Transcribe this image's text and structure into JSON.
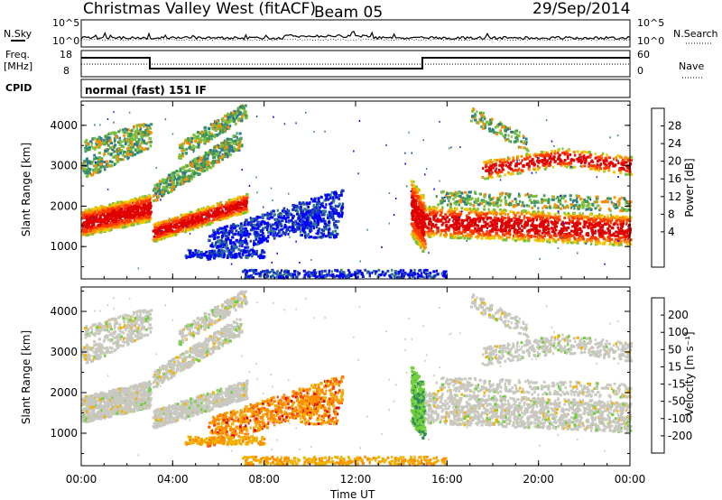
{
  "header": {
    "title": "Christmas Valley West (fitACF)",
    "beam": "Beam 05",
    "date": "29/Sep/2014"
  },
  "params": {
    "nsky_label": "N.Sky",
    "nsearch_label": "N.Search",
    "freq_label_1": "Freq.",
    "freq_label_2": "[MHz]",
    "nave_label": "Nave",
    "cpid_label": "CPID",
    "cpid_value": "normal (fast) 151 IF",
    "noise_ticks": [
      "10^5",
      "10^0"
    ],
    "nsearch_ticks": [
      "10^5",
      "10^0"
    ],
    "freq_ticks": [
      "18",
      "8"
    ],
    "nave_ticks": [
      "60",
      "0"
    ]
  },
  "colors": {
    "power": [
      "#0000ff",
      "#1a3cb4",
      "#2f7a8c",
      "#3f9a5a",
      "#7ac03a",
      "#f0c800",
      "#ff8c00",
      "#ff3a00",
      "#e00000"
    ],
    "velocity": [
      "#0000c8",
      "#2f5acc",
      "#2f8a5a",
      "#6fd03a",
      "#c8c8c0",
      "#f0b400",
      "#ff8c00",
      "#ff4000",
      "#e00000"
    ]
  },
  "chart_data": [
    {
      "type": "heatmap",
      "panel": "power",
      "ylabel": "Slant Range [km]",
      "ylim": [
        200,
        4600
      ],
      "yticks": [
        "1000",
        "2000",
        "3000",
        "4000"
      ],
      "colorbar_label": "Power [dB]",
      "colorbar_ticks": [
        "28",
        "24",
        "20",
        "16",
        "12",
        "8",
        "4"
      ],
      "xlim_hours": [
        0,
        24
      ],
      "xticks": [
        "00:00",
        "04:00",
        "08:00",
        "12:00",
        "16:00",
        "20:00",
        "00:00"
      ],
      "xlabel": "Time UT"
    },
    {
      "type": "heatmap",
      "panel": "velocity",
      "ylabel": "Slant Range [km]",
      "ylim": [
        200,
        4600
      ],
      "yticks": [
        "1000",
        "2000",
        "3000",
        "4000"
      ],
      "colorbar_label": "Velocity [m s⁻¹]",
      "colorbar_ticks": [
        "200",
        "100",
        "50",
        "15",
        "-15",
        "-50",
        "-100",
        "-200"
      ],
      "xlim_hours": [
        0,
        24
      ],
      "xticks": [
        "00:00",
        "04:00",
        "08:00",
        "12:00",
        "16:00",
        "20:00",
        "00:00"
      ],
      "xlabel": "Time UT"
    }
  ]
}
